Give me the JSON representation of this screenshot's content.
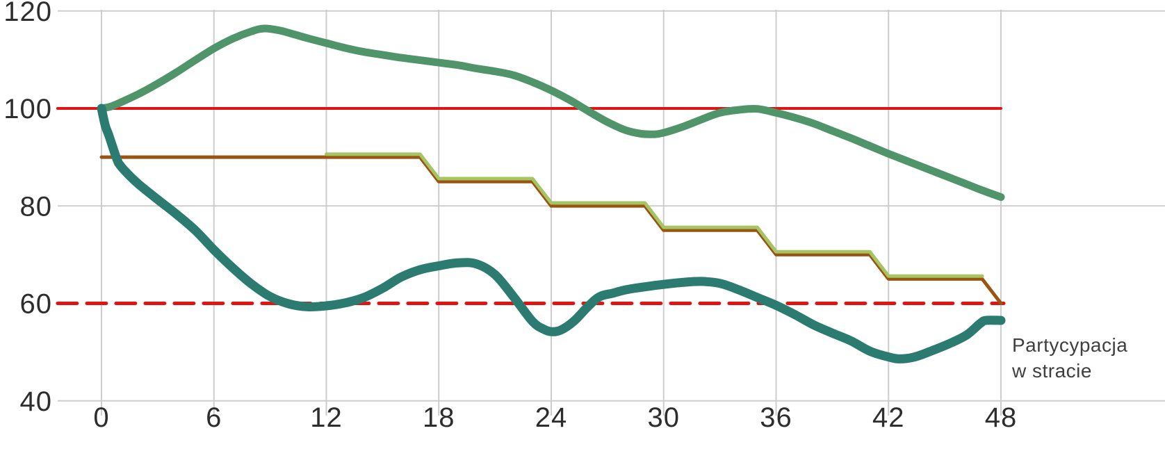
{
  "chart_data": {
    "type": "line",
    "title": "",
    "xlabel": "",
    "ylabel": "",
    "xlim": [
      0,
      48
    ],
    "ylim": [
      40,
      120
    ],
    "x_ticks": [
      0,
      6,
      12,
      18,
      24,
      30,
      36,
      42,
      48
    ],
    "y_ticks": [
      120,
      100,
      80,
      60,
      40
    ],
    "grid": {
      "on": true,
      "color": "#cdcdcd",
      "vertical_at": [
        0,
        6,
        12,
        18,
        24,
        30,
        36,
        42,
        48
      ],
      "horizontal_at": [
        120,
        80,
        40
      ]
    },
    "axis_text_color": "#2d2d2d",
    "legend": "none",
    "annotation": {
      "line1": "Partycypacja",
      "line2": "w stracie",
      "color": "#3f3f3f",
      "anchor_x": 48.6,
      "anchor_y": 53
    },
    "series": [
      {
        "name": "reference-level-100-solid-red",
        "style": "solid",
        "smooth": false,
        "color": "#e11414",
        "width": 4,
        "dash": "",
        "points": [
          [
            -2.34,
            100
          ],
          [
            48.0,
            100
          ]
        ]
      },
      {
        "name": "reference-level-60-dashed-red",
        "style": "dashed",
        "smooth": false,
        "color": "#e11414",
        "width": 5,
        "dash": "28 14",
        "points": [
          [
            -2.34,
            60
          ],
          [
            48.15,
            60
          ]
        ]
      },
      {
        "name": "step-line-brown",
        "style": "step",
        "smooth": false,
        "color": "#9b5310",
        "width": 5,
        "dash": "",
        "points": [
          [
            0,
            90
          ],
          [
            17,
            90
          ],
          [
            18,
            85
          ],
          [
            23,
            85
          ],
          [
            24,
            80
          ],
          [
            29,
            80
          ],
          [
            30,
            75
          ],
          [
            35,
            75
          ],
          [
            36,
            70
          ],
          [
            41,
            70
          ],
          [
            42,
            65
          ],
          [
            47,
            65
          ],
          [
            48,
            60
          ]
        ]
      },
      {
        "name": "step-line-light-green",
        "style": "step",
        "smooth": false,
        "color": "#a5c462",
        "width": 5,
        "dash": "",
        "points": [
          [
            12,
            90.6
          ],
          [
            17,
            90.6
          ],
          [
            18,
            85.6
          ],
          [
            23,
            85.6
          ],
          [
            24,
            80.6
          ],
          [
            29,
            80.6
          ],
          [
            30,
            75.6
          ],
          [
            35,
            75.6
          ],
          [
            36,
            70.6
          ],
          [
            41,
            70.6
          ],
          [
            42,
            65.6
          ],
          [
            47,
            65.6
          ]
        ]
      },
      {
        "name": "green-curve-portfolio",
        "style": "curve",
        "smooth": true,
        "color": "#4f9569",
        "width": 11,
        "dash": "",
        "points": [
          [
            0,
            100
          ],
          [
            0.5,
            100.4
          ],
          [
            1,
            101.2
          ],
          [
            2,
            103
          ],
          [
            3,
            105.1
          ],
          [
            4,
            107.4
          ],
          [
            5,
            109.9
          ],
          [
            6,
            112.3
          ],
          [
            7,
            114.3
          ],
          [
            8,
            115.8
          ],
          [
            8.7,
            116.4
          ],
          [
            9.5,
            116
          ],
          [
            10,
            115.5
          ],
          [
            11,
            114.4
          ],
          [
            12,
            113.4
          ],
          [
            13,
            112.4
          ],
          [
            14,
            111.6
          ],
          [
            15,
            111
          ],
          [
            16,
            110.4
          ],
          [
            17,
            109.9
          ],
          [
            18,
            109.4
          ],
          [
            19,
            108.9
          ],
          [
            20,
            108.2
          ],
          [
            21,
            107.6
          ],
          [
            22,
            106.8
          ],
          [
            23,
            105.4
          ],
          [
            24,
            103.7
          ],
          [
            25,
            101.7
          ],
          [
            26,
            99.4
          ],
          [
            27,
            97.2
          ],
          [
            28,
            95.5
          ],
          [
            28.8,
            94.8
          ],
          [
            29.5,
            94.7
          ],
          [
            30,
            95
          ],
          [
            31,
            96.2
          ],
          [
            32,
            97.7
          ],
          [
            33,
            99.1
          ],
          [
            34,
            99.7
          ],
          [
            35,
            99.9
          ],
          [
            36,
            99.1
          ],
          [
            37,
            98.1
          ],
          [
            38,
            96.9
          ],
          [
            39,
            95.4
          ],
          [
            40,
            93.9
          ],
          [
            41,
            92.3
          ],
          [
            42,
            90.7
          ],
          [
            43,
            89.2
          ],
          [
            44,
            87.7
          ],
          [
            45,
            86.2
          ],
          [
            46,
            84.7
          ],
          [
            47,
            83.2
          ],
          [
            48,
            81.8
          ]
        ]
      },
      {
        "name": "teal-curve-participation-in-loss",
        "style": "curve",
        "smooth": true,
        "color": "#2b7b71",
        "width": 13,
        "dash": "",
        "points": [
          [
            0,
            100
          ],
          [
            0.2,
            96.5
          ],
          [
            0.4,
            94.4
          ],
          [
            0.8,
            89.8
          ],
          [
            1,
            88.3
          ],
          [
            1.5,
            86.2
          ],
          [
            2,
            84.4
          ],
          [
            3,
            81.3
          ],
          [
            4,
            78.3
          ],
          [
            5,
            75
          ],
          [
            6,
            71
          ],
          [
            7,
            67.3
          ],
          [
            8,
            64
          ],
          [
            9,
            61.4
          ],
          [
            10,
            59.9
          ],
          [
            11,
            59.3
          ],
          [
            12,
            59.5
          ],
          [
            13,
            60.1
          ],
          [
            14,
            61.2
          ],
          [
            15,
            63.1
          ],
          [
            16,
            65.4
          ],
          [
            17,
            66.9
          ],
          [
            18,
            67.7
          ],
          [
            19,
            68.3
          ],
          [
            20,
            68.1
          ],
          [
            21,
            65.9
          ],
          [
            22,
            61.3
          ],
          [
            23,
            56.3
          ],
          [
            23.6,
            54.7
          ],
          [
            24,
            54.2
          ],
          [
            24.5,
            54.5
          ],
          [
            25.2,
            56.3
          ],
          [
            26,
            59.5
          ],
          [
            26.6,
            61.4
          ],
          [
            27.3,
            62.1
          ],
          [
            28,
            62.8
          ],
          [
            29,
            63.4
          ],
          [
            30,
            63.9
          ],
          [
            31,
            64.3
          ],
          [
            32,
            64.5
          ],
          [
            33,
            64.1
          ],
          [
            34,
            62.8
          ],
          [
            35,
            61.2
          ],
          [
            36,
            59.6
          ],
          [
            37,
            57.7
          ],
          [
            38,
            55.6
          ],
          [
            39,
            53.9
          ],
          [
            40,
            52.3
          ],
          [
            41,
            50.2
          ],
          [
            42,
            49
          ],
          [
            42.6,
            48.6
          ],
          [
            43.4,
            49
          ],
          [
            44.4,
            50.4
          ],
          [
            45.4,
            52
          ],
          [
            46.2,
            53.6
          ],
          [
            46.9,
            55.9
          ],
          [
            47.2,
            56.5
          ],
          [
            48,
            56.5
          ]
        ]
      }
    ]
  }
}
